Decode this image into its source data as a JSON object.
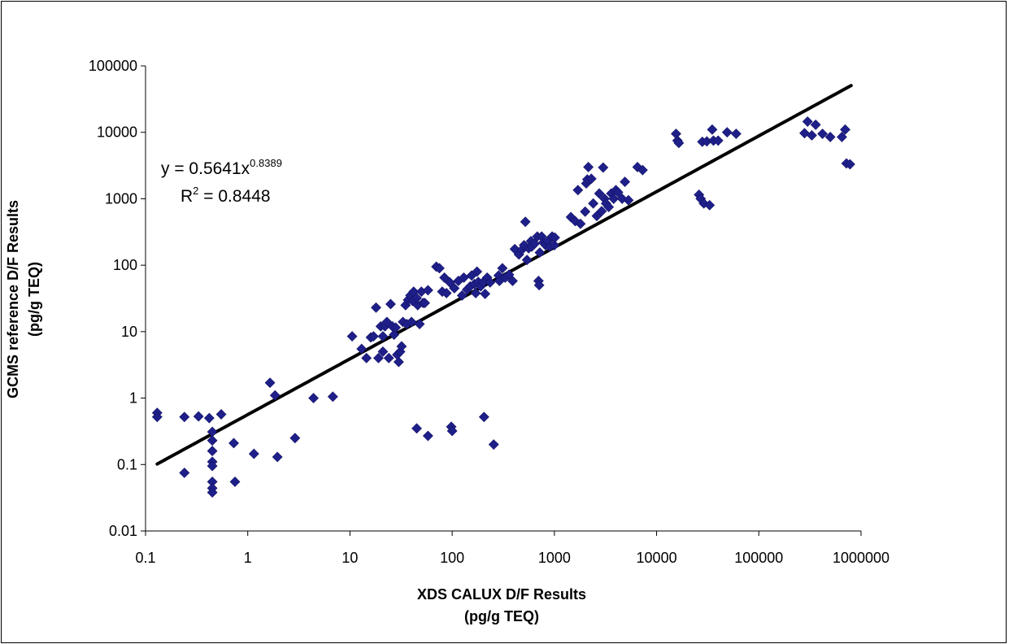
{
  "chart_data": {
    "type": "scatter",
    "title": "",
    "xlabel_lines": [
      "XDS CALUX D/F Results",
      "(pg/g TEQ)"
    ],
    "ylabel_lines": [
      "GCMS reference D/F Results",
      "(pg/g TEQ)"
    ],
    "x_scale": "log",
    "y_scale": "log",
    "xlim": [
      0.1,
      1000000
    ],
    "ylim": [
      0.01,
      100000
    ],
    "x_tick_values": [
      0.1,
      1,
      10,
      100,
      1000,
      10000,
      100000,
      1000000
    ],
    "x_tick_labels": [
      "0.1",
      "1",
      "10",
      "100",
      "1000",
      "10000",
      "100000",
      "1000000"
    ],
    "y_tick_values": [
      0.01,
      0.1,
      1,
      10,
      100,
      1000,
      10000,
      100000
    ],
    "y_tick_labels": [
      "0.01",
      "0.1",
      "1",
      "10",
      "100",
      "1000",
      "10000",
      "100000"
    ],
    "grid": false,
    "legend": "none",
    "marker_color": "#1F1F8A",
    "trendline_color": "#000000",
    "trendline": {
      "type": "power",
      "a": 0.5641,
      "b": 0.8389,
      "x_from": 0.13,
      "x_to": 800000
    },
    "equation": {
      "prefix": "y = 0.5641x",
      "exponent": "0.8389"
    },
    "r2": {
      "prefix": "R",
      "sup": "2",
      "suffix": " = 0.8448"
    },
    "points": [
      [
        0.13,
        0.6
      ],
      [
        0.13,
        0.52
      ],
      [
        0.24,
        0.52
      ],
      [
        0.24,
        0.075
      ],
      [
        0.33,
        0.53
      ],
      [
        0.42,
        0.5
      ],
      [
        0.45,
        0.31
      ],
      [
        0.45,
        0.23
      ],
      [
        0.45,
        0.16
      ],
      [
        0.45,
        0.11
      ],
      [
        0.45,
        0.095
      ],
      [
        0.45,
        0.055
      ],
      [
        0.45,
        0.044
      ],
      [
        0.45,
        0.038
      ],
      [
        0.55,
        0.57
      ],
      [
        0.73,
        0.21
      ],
      [
        0.75,
        0.055
      ],
      [
        1.15,
        0.145
      ],
      [
        1.65,
        1.7
      ],
      [
        1.85,
        1.1
      ],
      [
        1.95,
        0.13
      ],
      [
        2.9,
        0.25
      ],
      [
        4.4,
        1.0
      ],
      [
        6.8,
        1.05
      ],
      [
        10.5,
        8.5
      ],
      [
        13,
        5.5
      ],
      [
        14.5,
        4
      ],
      [
        16,
        8.2
      ],
      [
        17,
        8.5
      ],
      [
        18,
        23
      ],
      [
        19,
        4
      ],
      [
        20,
        12
      ],
      [
        21,
        8.5
      ],
      [
        21,
        5
      ],
      [
        22,
        12
      ],
      [
        23,
        14
      ],
      [
        24,
        4
      ],
      [
        25,
        26
      ],
      [
        26,
        12
      ],
      [
        27,
        9
      ],
      [
        28,
        11.5
      ],
      [
        29,
        4.5
      ],
      [
        30,
        3.5
      ],
      [
        31,
        5
      ],
      [
        32,
        6
      ],
      [
        33,
        14
      ],
      [
        35,
        25
      ],
      [
        36,
        13
      ],
      [
        37,
        30
      ],
      [
        39,
        35
      ],
      [
        40,
        14
      ],
      [
        41,
        29
      ],
      [
        42,
        40
      ],
      [
        45,
        32
      ],
      [
        46,
        25
      ],
      [
        48,
        13
      ],
      [
        50,
        40
      ],
      [
        52,
        27
      ],
      [
        54,
        27
      ],
      [
        58,
        42
      ],
      [
        45,
        0.35
      ],
      [
        58,
        0.27
      ],
      [
        70,
        95
      ],
      [
        75,
        90
      ],
      [
        80,
        40
      ],
      [
        84,
        65
      ],
      [
        88,
        38
      ],
      [
        95,
        55
      ],
      [
        98,
        0.37
      ],
      [
        100,
        0.32
      ],
      [
        105,
        45
      ],
      [
        115,
        58
      ],
      [
        125,
        35
      ],
      [
        130,
        65
      ],
      [
        140,
        43
      ],
      [
        150,
        48
      ],
      [
        155,
        70
      ],
      [
        165,
        52
      ],
      [
        170,
        38
      ],
      [
        175,
        80
      ],
      [
        180,
        56
      ],
      [
        190,
        48
      ],
      [
        200,
        55
      ],
      [
        205,
        0.52
      ],
      [
        210,
        37
      ],
      [
        220,
        65
      ],
      [
        235,
        55
      ],
      [
        255,
        0.2
      ],
      [
        285,
        70
      ],
      [
        290,
        58
      ],
      [
        310,
        90
      ],
      [
        330,
        65
      ],
      [
        360,
        72
      ],
      [
        390,
        58
      ],
      [
        410,
        175
      ],
      [
        450,
        145
      ],
      [
        480,
        170
      ],
      [
        505,
        200
      ],
      [
        520,
        450
      ],
      [
        540,
        120
      ],
      [
        560,
        180
      ],
      [
        590,
        230
      ],
      [
        600,
        190
      ],
      [
        640,
        210
      ],
      [
        680,
        270
      ],
      [
        700,
        58
      ],
      [
        710,
        50
      ],
      [
        720,
        155
      ],
      [
        750,
        270
      ],
      [
        780,
        220
      ],
      [
        820,
        200
      ],
      [
        860,
        230
      ],
      [
        900,
        190
      ],
      [
        950,
        270
      ],
      [
        1000,
        200
      ],
      [
        1010,
        260
      ],
      [
        1450,
        530
      ],
      [
        1600,
        460
      ],
      [
        1700,
        1350
      ],
      [
        1800,
        420
      ],
      [
        2000,
        640
      ],
      [
        2050,
        1700
      ],
      [
        2100,
        1950
      ],
      [
        2150,
        3000
      ],
      [
        2300,
        2000
      ],
      [
        2400,
        850
      ],
      [
        2600,
        550
      ],
      [
        2750,
        1200
      ],
      [
        2900,
        650
      ],
      [
        3000,
        2950
      ],
      [
        3100,
        1000
      ],
      [
        3200,
        850
      ],
      [
        3400,
        750
      ],
      [
        3600,
        1200
      ],
      [
        3800,
        1000
      ],
      [
        4000,
        1350
      ],
      [
        4200,
        1250
      ],
      [
        4600,
        1000
      ],
      [
        4900,
        1800
      ],
      [
        5300,
        950
      ],
      [
        6500,
        3000
      ],
      [
        7300,
        2700
      ],
      [
        15500,
        9500
      ],
      [
        16000,
        7500
      ],
      [
        16500,
        6900
      ],
      [
        26000,
        1150
      ],
      [
        27000,
        1000
      ],
      [
        28000,
        7200
      ],
      [
        29000,
        850
      ],
      [
        31000,
        7300
      ],
      [
        33000,
        800
      ],
      [
        35000,
        11000
      ],
      [
        36000,
        7500
      ],
      [
        40000,
        7500
      ],
      [
        49000,
        10000
      ],
      [
        60000,
        9500
      ],
      [
        280000,
        9700
      ],
      [
        300000,
        14500
      ],
      [
        330000,
        9000
      ],
      [
        360000,
        13000
      ],
      [
        420000,
        9500
      ],
      [
        500000,
        8500
      ],
      [
        650000,
        8500
      ],
      [
        700000,
        11000
      ],
      [
        720000,
        3400
      ],
      [
        780000,
        3300
      ]
    ]
  }
}
